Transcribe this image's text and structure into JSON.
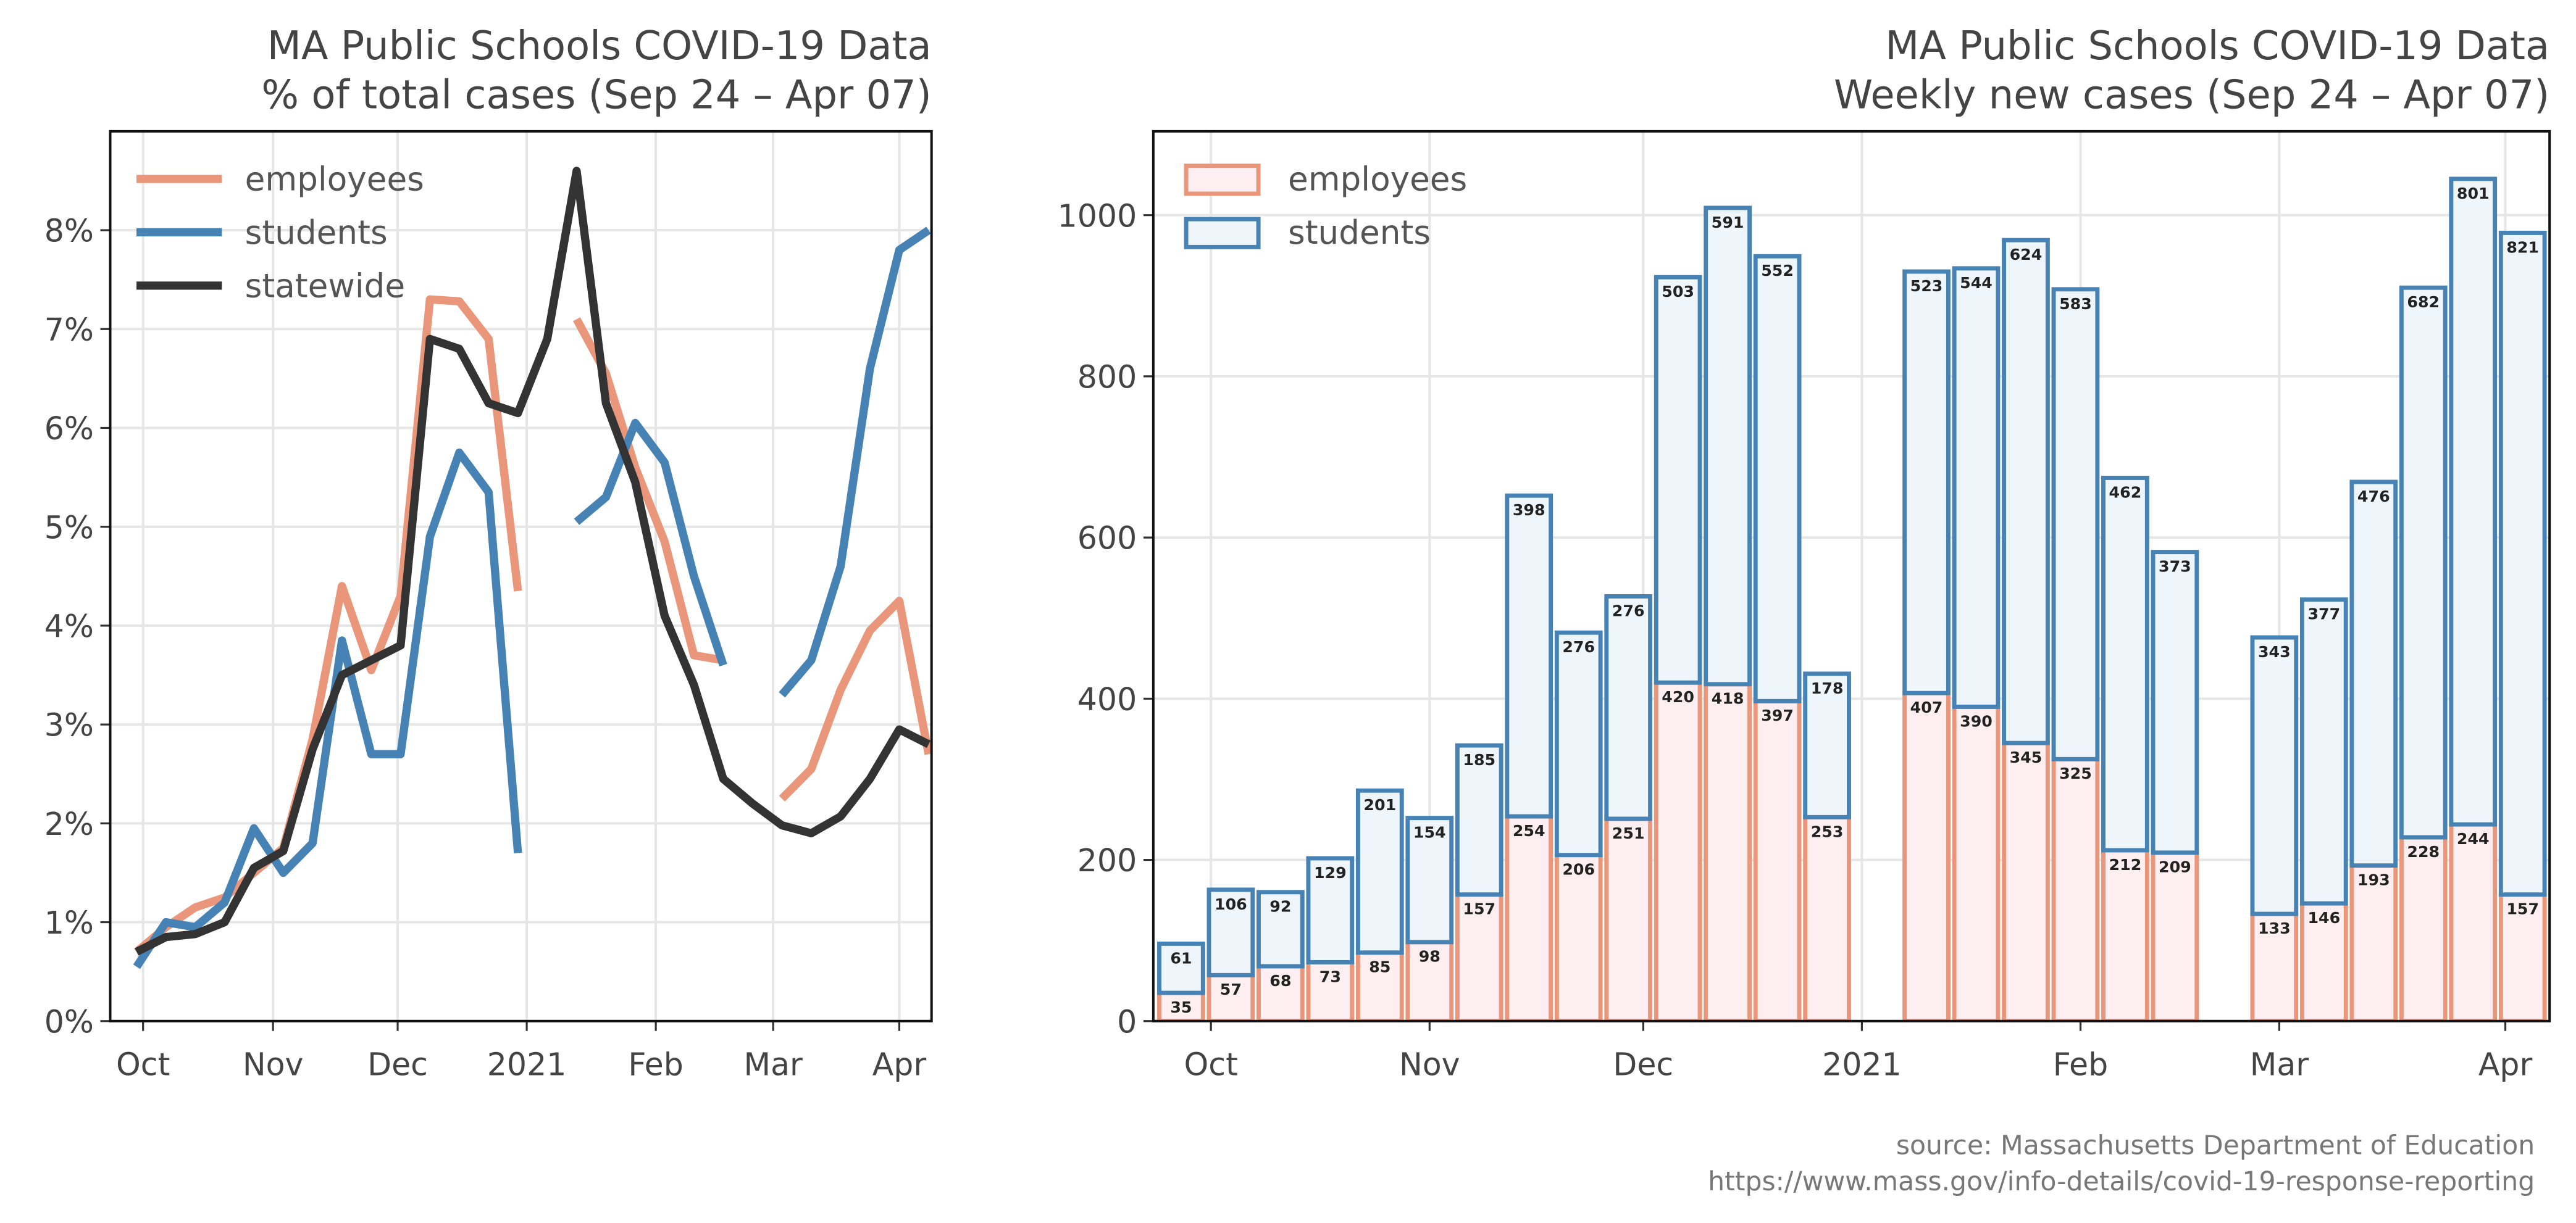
{
  "chart_data": [
    {
      "type": "line",
      "title": "MA Public Schools COVID-19 Data",
      "subtitle": "% of total cases (Sep 24 – Apr 07)",
      "categories": [
        null,
        null,
        null,
        null,
        null,
        null,
        null,
        null,
        null,
        null,
        null,
        null,
        null,
        null,
        null,
        null,
        null,
        null,
        null,
        null,
        null,
        null,
        null,
        null,
        null,
        null,
        null,
        null
      ],
      "xlim": [
        -0.9,
        27.1
      ],
      "xticks": [
        {
          "value": 0.22,
          "label": "Oct"
        },
        {
          "value": 4.65,
          "label": "Nov"
        },
        {
          "value": 8.9,
          "label": "Dec"
        },
        {
          "value": 13.3,
          "label": "2021"
        },
        {
          "value": 17.7,
          "label": "Feb"
        },
        {
          "value": 21.7,
          "label": "Mar"
        },
        {
          "value": 26.0,
          "label": "Apr"
        }
      ],
      "ylim": [
        0,
        9
      ],
      "yticks": [
        {
          "value": 0,
          "label": "0%"
        },
        {
          "value": 1,
          "label": "1%"
        },
        {
          "value": 2,
          "label": "2%"
        },
        {
          "value": 3,
          "label": "3%"
        },
        {
          "value": 4,
          "label": "4%"
        },
        {
          "value": 5,
          "label": "5%"
        },
        {
          "value": 6,
          "label": "6%"
        },
        {
          "value": 7,
          "label": "7%"
        },
        {
          "value": 8,
          "label": "8%"
        }
      ],
      "grid": true,
      "legend": "upper left",
      "series": [
        {
          "name": "employees",
          "color": "#e9967a",
          "values": [
            0.7,
            0.95,
            1.15,
            1.25,
            1.5,
            1.75,
            2.85,
            4.4,
            3.55,
            4.3,
            7.3,
            7.28,
            6.9,
            4.35,
            null,
            7.1,
            6.55,
            5.6,
            4.85,
            3.7,
            3.65,
            null,
            2.25,
            2.55,
            3.35,
            3.95,
            4.25,
            2.7
          ]
        },
        {
          "name": "students",
          "color": "#4682b4",
          "values": [
            0.55,
            1.0,
            0.95,
            1.2,
            1.95,
            1.5,
            1.8,
            3.85,
            2.7,
            2.7,
            4.9,
            5.75,
            5.35,
            1.7,
            null,
            5.05,
            5.3,
            6.05,
            5.65,
            4.5,
            3.6,
            null,
            3.3,
            3.65,
            4.6,
            6.6,
            7.8,
            8.0
          ]
        },
        {
          "name": "statewide",
          "color": "#333333",
          "values": [
            0.7,
            0.85,
            0.88,
            1.0,
            1.55,
            1.72,
            2.75,
            3.5,
            3.65,
            3.8,
            6.9,
            6.8,
            6.25,
            6.15,
            6.9,
            8.6,
            6.25,
            5.45,
            4.1,
            3.4,
            2.45,
            2.2,
            1.98,
            1.9,
            2.07,
            2.45,
            2.95,
            2.8
          ]
        }
      ]
    },
    {
      "type": "bar",
      "stacked": true,
      "title": "MA Public Schools COVID-19 Data",
      "subtitle": "Weekly new cases (Sep 24 – Apr 07)",
      "categories": [
        null,
        null,
        null,
        null,
        null,
        null,
        null,
        null,
        null,
        null,
        null,
        null,
        null,
        null,
        null,
        null,
        null,
        null,
        null,
        null,
        null,
        null,
        null,
        null,
        null,
        null,
        null,
        null
      ],
      "xlim": [
        -0.56,
        27.54
      ],
      "xticks": [
        {
          "value": 0.6,
          "label": "Oct"
        },
        {
          "value": 5.0,
          "label": "Nov"
        },
        {
          "value": 9.3,
          "label": "Dec"
        },
        {
          "value": 13.7,
          "label": "2021"
        },
        {
          "value": 18.1,
          "label": "Feb"
        },
        {
          "value": 22.1,
          "label": "Mar"
        },
        {
          "value": 26.65,
          "label": "Apr"
        }
      ],
      "ylim": [
        0,
        1104
      ],
      "yticks": [
        0,
        200,
        400,
        600,
        800,
        1000
      ],
      "grid": true,
      "legend": "upper left",
      "series": [
        {
          "name": "employees",
          "color": "#e9967a",
          "fill": "#fdeef2",
          "values": [
            35,
            57,
            68,
            73,
            85,
            98,
            157,
            254,
            206,
            251,
            420,
            418,
            397,
            253,
            null,
            407,
            390,
            345,
            325,
            212,
            209,
            null,
            133,
            146,
            193,
            228,
            244,
            157
          ]
        },
        {
          "name": "students",
          "color": "#4682b4",
          "fill": "#eef6fc",
          "values": [
            61,
            106,
            92,
            129,
            201,
            154,
            185,
            398,
            276,
            276,
            503,
            591,
            552,
            178,
            null,
            523,
            544,
            624,
            583,
            462,
            373,
            null,
            343,
            377,
            476,
            682,
            801,
            821
          ]
        }
      ]
    }
  ],
  "footer": {
    "source": "source: Massachusetts Department of Education",
    "url": "https://www.mass.gov/info-details/covid-19-response-reporting"
  }
}
